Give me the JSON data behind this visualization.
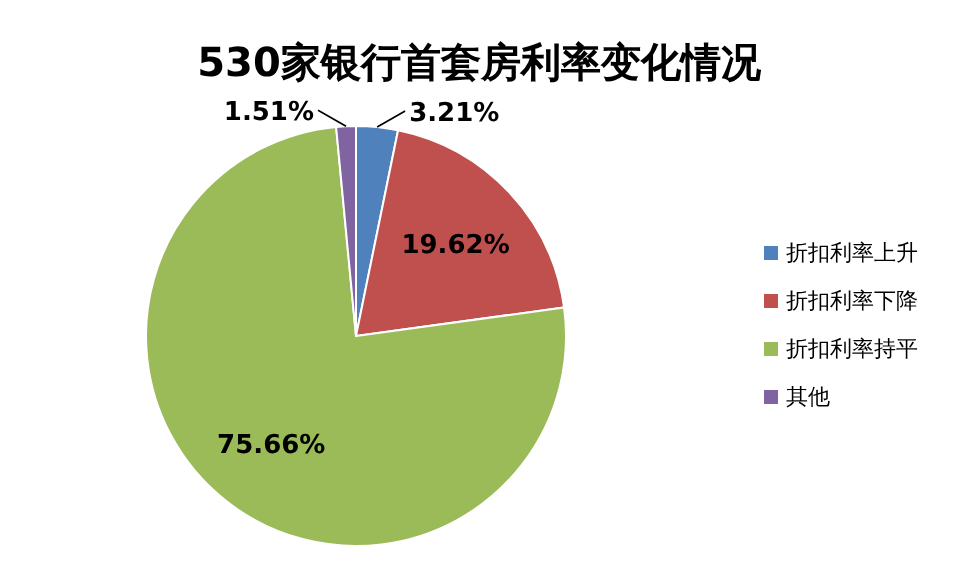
{
  "chart_data": {
    "type": "pie",
    "title": "530家银行首套房利率变化情况",
    "categories": [
      "折扣利率上升",
      "折扣利率下降",
      "折扣利率持平",
      "其他"
    ],
    "values": [
      3.21,
      19.62,
      75.66,
      1.51
    ],
    "value_labels": [
      "3.21%",
      "19.62%",
      "75.66%",
      "1.51%"
    ],
    "colors": [
      "#4f81bd",
      "#c0504d",
      "#9bbb59",
      "#8064a2"
    ],
    "legend": "right"
  }
}
